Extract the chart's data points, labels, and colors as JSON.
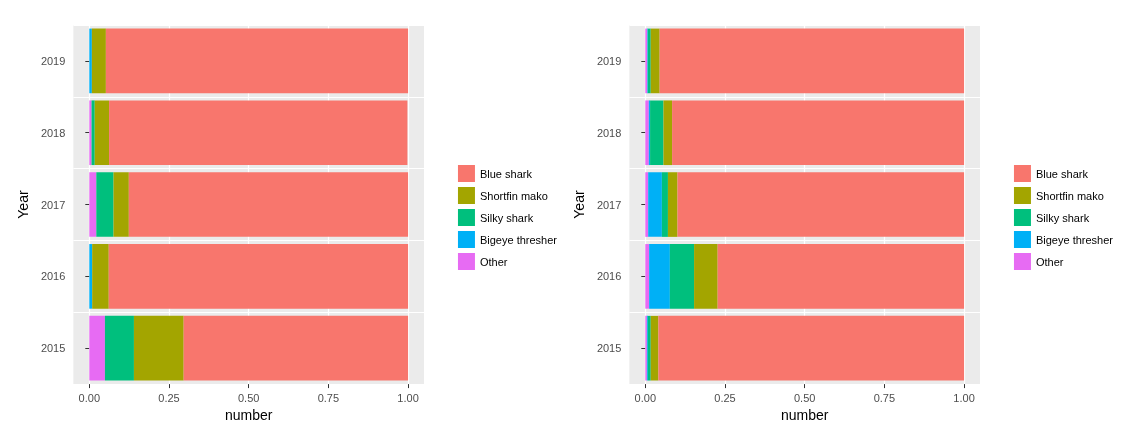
{
  "chart_data": [
    {
      "type": "bar",
      "orientation": "horizontal",
      "stacked": true,
      "xlabel": "number",
      "ylabel": "Year",
      "categories": [
        "2019",
        "2018",
        "2017",
        "2016",
        "2015"
      ],
      "xlim": [
        -0.05,
        1.05
      ],
      "xticks": [
        {
          "value": 0,
          "label": "0.00"
        },
        {
          "value": 0.25,
          "label": "0.25"
        },
        {
          "value": 0.5,
          "label": "0.50"
        },
        {
          "value": 0.75,
          "label": "0.75"
        },
        {
          "value": 1,
          "label": "1.00"
        }
      ],
      "grid": true,
      "legend": "right",
      "series": [
        {
          "name": "Other",
          "color": "#e76bf3",
          "values": [
            0,
            0.007,
            0.022,
            0,
            0.049
          ]
        },
        {
          "name": "Bigeye thresher",
          "color": "#00b0f6",
          "values": [
            0.008,
            null,
            0,
            0.009,
            0
          ]
        },
        {
          "name": "Silky shark",
          "color": "#00bf7d",
          "values": [
            0,
            0.01,
            0.054,
            0,
            0.091
          ]
        },
        {
          "name": "Shortfin mako",
          "color": "#a3a500",
          "values": [
            0.044,
            0.045,
            0.048,
            0.052,
            0.156
          ]
        },
        {
          "name": "Blue shark",
          "color": "#f8766d",
          "values": [
            0.948,
            0.936,
            0.876,
            0.939,
            0.704
          ]
        }
      ]
    },
    {
      "type": "bar",
      "orientation": "horizontal",
      "stacked": true,
      "xlabel": "number",
      "ylabel": "Year",
      "categories": [
        "2019",
        "2018",
        "2017",
        "2016",
        "2015"
      ],
      "xlim": [
        -0.05,
        1.05
      ],
      "xticks": [
        {
          "value": 0,
          "label": "0.00"
        },
        {
          "value": 0.25,
          "label": "0.25"
        },
        {
          "value": 0.5,
          "label": "0.50"
        },
        {
          "value": 0.75,
          "label": "0.75"
        },
        {
          "value": 1,
          "label": "1.00"
        }
      ],
      "grid": true,
      "legend": "right",
      "series": [
        {
          "name": "Other",
          "color": "#e76bf3",
          "values": [
            0.006,
            0.011,
            0.009,
            0.012,
            0.005
          ]
        },
        {
          "name": "Bigeye thresher",
          "color": "#00b0f6",
          "values": [
            0.002,
            0.004,
            0.043,
            0.065,
            0.003
          ]
        },
        {
          "name": "Silky shark",
          "color": "#00bf7d",
          "values": [
            0.009,
            0.042,
            0.019,
            0.076,
            0.009
          ]
        },
        {
          "name": "Shortfin mako",
          "color": "#a3a500",
          "values": [
            0.028,
            0.027,
            0.03,
            0.074,
            0.024
          ]
        },
        {
          "name": "Blue shark",
          "color": "#f8766d",
          "values": [
            0.955,
            0.916,
            0.899,
            0.773,
            0.959
          ]
        }
      ]
    }
  ]
}
